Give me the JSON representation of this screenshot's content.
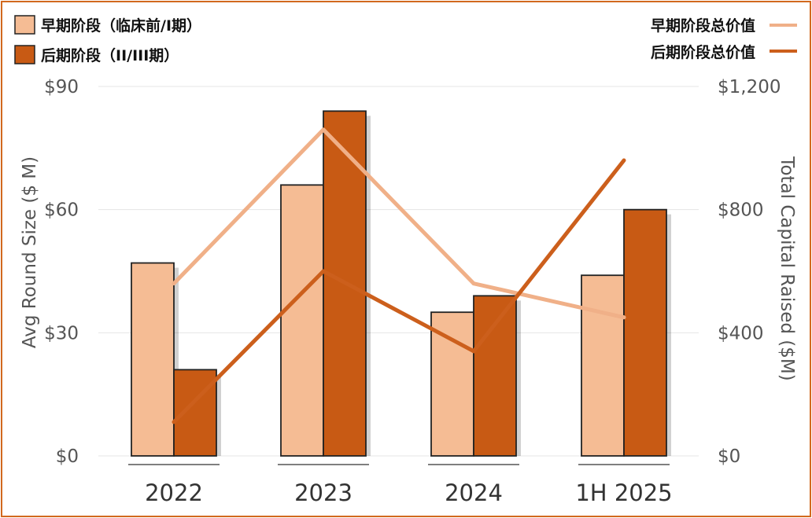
{
  "chart_data": {
    "type": "bar+line",
    "categories": [
      "2022",
      "2023",
      "2024",
      "1H 2025"
    ],
    "bar_series": [
      {
        "name": "早期阶段（临床前/I期）",
        "values": [
          47,
          66,
          35,
          44
        ],
        "color": "#f5bc94"
      },
      {
        "name": "后期阶段（II/III期）",
        "values": [
          21,
          84,
          39,
          60
        ],
        "color": "#c85a14"
      }
    ],
    "line_series": [
      {
        "name": "早期阶段总价值",
        "values": [
          560,
          1060,
          560,
          450
        ],
        "color": "#f0b088"
      },
      {
        "name": "后期阶段总价值",
        "values": [
          110,
          600,
          340,
          960
        ],
        "color": "#cc5f1c"
      }
    ],
    "y_left": {
      "label": "Avg Round Size ($ M)",
      "ylim": [
        0,
        90
      ],
      "ticks": [
        "$0",
        "$30",
        "$60",
        "$90"
      ],
      "tick_values": [
        0,
        30,
        60,
        90
      ]
    },
    "y_right": {
      "label": "Total Capital Raised ($M)",
      "ylim": [
        0,
        1200
      ],
      "ticks": [
        "$0",
        "$400",
        "$800",
        "$1,200"
      ],
      "tick_values": [
        0,
        400,
        800,
        1200
      ]
    },
    "grid": true
  }
}
